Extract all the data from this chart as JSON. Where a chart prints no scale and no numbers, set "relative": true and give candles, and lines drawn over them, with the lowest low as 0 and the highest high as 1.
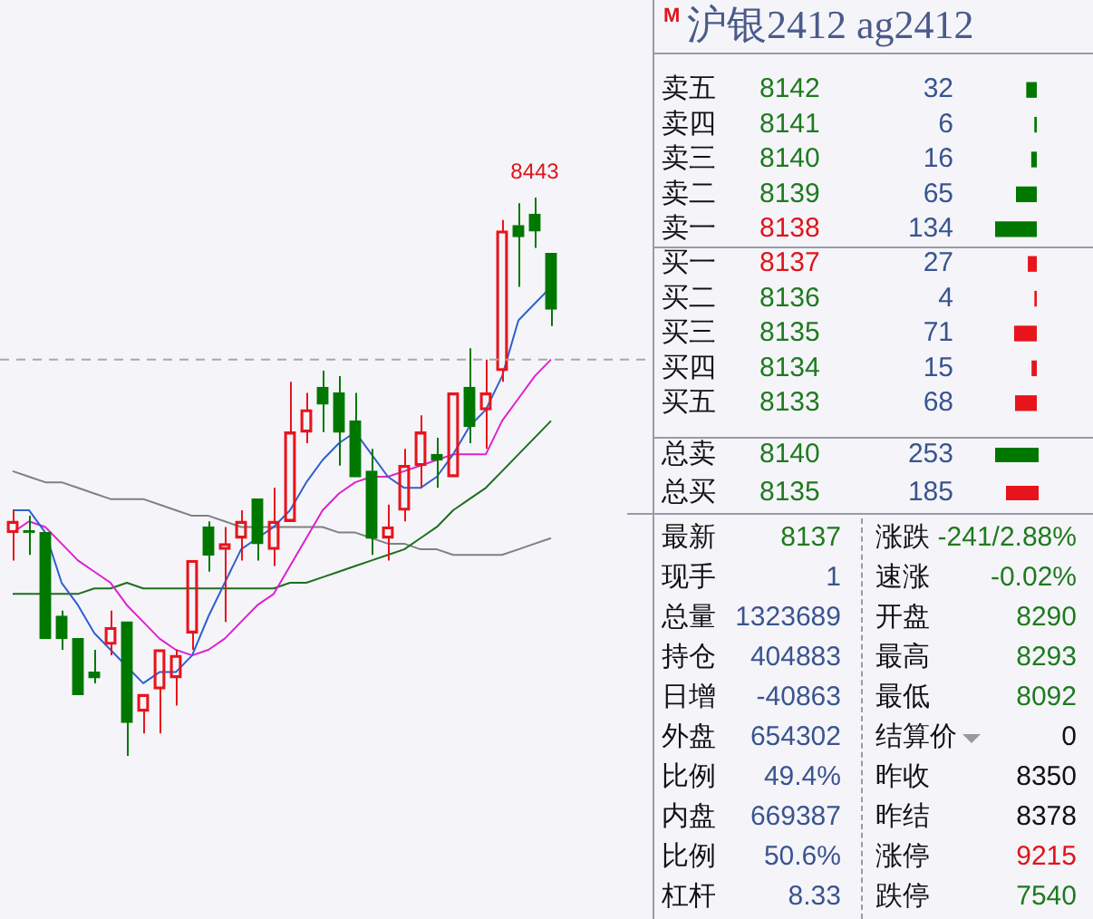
{
  "chart_data": [
    {
      "type": "candlestick",
      "relative": true,
      "tick_labels": false,
      "categories": [
        null,
        null,
        null,
        null,
        null,
        null,
        null,
        null,
        null,
        null,
        null,
        null,
        null,
        null,
        null,
        null,
        null,
        null,
        null,
        null,
        null,
        null,
        null,
        null,
        null,
        null,
        null,
        null,
        null,
        null,
        null,
        null,
        null,
        null
      ],
      "ohlc": [
        [
          0.4,
          0.44,
          0.35,
          0.42
        ],
        [
          0.4,
          0.43,
          0.36,
          0.4
        ],
        [
          0.4,
          0.4,
          0.21,
          0.21
        ],
        [
          0.25,
          0.26,
          0.19,
          0.21
        ],
        [
          0.21,
          0.21,
          0.11,
          0.11
        ],
        [
          0.15,
          0.19,
          0.13,
          0.14
        ],
        [
          0.2,
          0.26,
          0.18,
          0.23
        ],
        [
          0.24,
          0.24,
          0,
          0.06
        ],
        [
          0.08,
          0.11,
          0.04,
          0.11
        ],
        [
          0.12,
          0.19,
          0.04,
          0.19
        ],
        [
          0.14,
          0.19,
          0.09,
          0.18
        ],
        [
          0.22,
          0.35,
          0.19,
          0.35
        ],
        [
          0.41,
          0.42,
          0.33,
          0.36
        ],
        [
          0.37,
          0.41,
          0.24,
          0.38
        ],
        [
          0.39,
          0.44,
          0.35,
          0.42
        ],
        [
          0.46,
          0.46,
          0.35,
          0.38
        ],
        [
          0.37,
          0.48,
          0.34,
          0.42
        ],
        [
          0.42,
          0.67,
          0.42,
          0.58
        ],
        [
          0.58,
          0.65,
          0.56,
          0.62
        ],
        [
          0.66,
          0.69,
          0.58,
          0.63
        ],
        [
          0.65,
          0.68,
          0.52,
          0.58
        ],
        [
          0.6,
          0.65,
          0.5,
          0.5
        ],
        [
          0.51,
          0.55,
          0.36,
          0.39
        ],
        [
          0.39,
          0.45,
          0.35,
          0.41
        ],
        [
          0.44,
          0.55,
          0.42,
          0.52
        ],
        [
          0.52,
          0.61,
          0.48,
          0.58
        ],
        [
          0.54,
          0.57,
          0.48,
          0.53
        ],
        [
          0.5,
          0.65,
          0.5,
          0.65
        ],
        [
          0.66,
          0.73,
          0.56,
          0.59
        ],
        [
          0.62,
          0.71,
          0.55,
          0.65
        ],
        [
          0.69,
          0.96,
          0.67,
          0.94
        ],
        [
          0.95,
          0.99,
          0.84,
          0.93
        ],
        [
          0.97,
          1,
          0.91,
          0.94
        ],
        [
          0.9,
          0.9,
          0.77,
          0.8
        ]
      ],
      "colors": [
        "#e8141c",
        "#007800",
        "#007800",
        "#007800",
        "#007800",
        "#007800",
        "#e8141c",
        "#007800",
        "#e8141c",
        "#e8141c",
        "#e8141c",
        "#e8141c",
        "#007800",
        "#e8141c",
        "#e8141c",
        "#007800",
        "#e8141c",
        "#e8141c",
        "#e8141c",
        "#007800",
        "#007800",
        "#007800",
        "#007800",
        "#e8141c",
        "#e8141c",
        "#e8141c",
        "#007800",
        "#e8141c",
        "#007800",
        "#e8141c",
        "#e8141c",
        "#007800",
        "#007800",
        "#007800"
      ],
      "series": [
        {
          "type": "line",
          "color": "#2f5fd0",
          "values": [
            0.44,
            0.44,
            0.4,
            0.31,
            0.27,
            0.22,
            0.19,
            0.16,
            0.13,
            0.15,
            0.15,
            0.18,
            0.25,
            0.31,
            0.37,
            0.39,
            0.41,
            0.44,
            0.49,
            0.53,
            0.56,
            0.58,
            0.54,
            0.5,
            0.48,
            0.48,
            0.5,
            0.54,
            0.59,
            0.62,
            0.68,
            0.78,
            0.81,
            0.84
          ]
        },
        {
          "type": "line",
          "color": "#e020d0",
          "values": [
            0.4,
            0.42,
            0.41,
            0.38,
            0.35,
            0.33,
            0.31,
            0.27,
            0.24,
            0.21,
            0.19,
            0.18,
            0.19,
            0.21,
            0.24,
            0.27,
            0.29,
            0.34,
            0.39,
            0.44,
            0.47,
            0.49,
            0.5,
            0.5,
            0.51,
            0.52,
            0.53,
            0.54,
            0.54,
            0.54,
            0.6,
            0.64,
            0.68,
            0.71
          ]
        },
        {
          "type": "line",
          "color": "#1e6e1e",
          "values": [
            0.29,
            0.29,
            0.29,
            0.29,
            0.29,
            0.3,
            0.3,
            0.31,
            0.3,
            0.3,
            0.3,
            0.3,
            0.3,
            0.3,
            0.3,
            0.3,
            0.3,
            0.31,
            0.31,
            0.32,
            0.33,
            0.34,
            0.35,
            0.36,
            0.37,
            0.39,
            0.41,
            0.44,
            0.46,
            0.48,
            0.51,
            0.54,
            0.57,
            0.6
          ]
        },
        {
          "type": "line",
          "color": "#808080",
          "values": [
            0.51,
            0.5,
            0.49,
            0.49,
            0.48,
            0.47,
            0.46,
            0.46,
            0.46,
            0.45,
            0.44,
            0.43,
            0.43,
            0.42,
            0.41,
            0.41,
            0.41,
            0.41,
            0.41,
            0.41,
            0.4,
            0.4,
            0.39,
            0.38,
            0.38,
            0.37,
            0.37,
            0.36,
            0.36,
            0.36,
            0.36,
            0.37,
            0.38,
            0.39
          ]
        }
      ],
      "ref_lines": [
        {
          "axis": "y",
          "value": 0.71,
          "color": "#a8a8a8",
          "line_style": "dashed"
        }
      ],
      "annotations": [
        {
          "text": "8443",
          "y": 1
        }
      ]
    },
    {
      "type": "other",
      "title": "沪银2412 ag2412",
      "annotations": [
        "M",
        "总卖",
        "8140",
        "253",
        "总买",
        "8135",
        "185",
        "最新",
        "8137",
        "涨跌",
        "-241/2.88%",
        "现手",
        "1",
        "速涨",
        "-0.02%",
        "总量",
        "1323689",
        "开盘",
        "8290",
        "持仓",
        "404883",
        "最高",
        "8293",
        "日增",
        "-40863",
        "最低",
        "8092",
        "外盘",
        "654302",
        "结算价",
        "0",
        "比例",
        "49.4%",
        "昨收",
        "8350",
        "内盘",
        "669387",
        "昨结",
        "8378",
        "比例",
        "50.6%",
        "涨停",
        "9215",
        "杠杆",
        "8.33",
        "跌停",
        "7540"
      ]
    },
    {
      "type": "bar",
      "orientation": "horizontal",
      "data_labels": true,
      "categories": [
        "8142",
        "8141",
        "8140",
        "8139",
        "8138",
        "8137",
        "8136",
        "8135",
        "8134",
        "8133"
      ],
      "values": [
        32,
        6,
        16,
        65,
        134,
        27,
        4,
        71,
        15,
        68
      ],
      "colors": [
        "#007800",
        "#007800",
        "#007800",
        "#007800",
        "#007800",
        "#e8141c",
        "#e8141c",
        "#e8141c",
        "#e8141c",
        "#e8141c"
      ],
      "annotations": [
        "卖五",
        "卖四",
        "卖三",
        "卖二",
        "卖一",
        "买一",
        "买二",
        "买三",
        "买四",
        "买五"
      ]
    }
  ]
}
